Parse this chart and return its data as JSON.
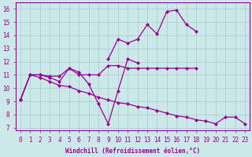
{
  "x": [
    0,
    1,
    2,
    3,
    4,
    5,
    6,
    7,
    8,
    9,
    10,
    11,
    12,
    13,
    14,
    15,
    16,
    17,
    18,
    19,
    20,
    21,
    22,
    23
  ],
  "line_high": [
    null,
    null,
    null,
    null,
    null,
    null,
    null,
    null,
    null,
    12.2,
    13.7,
    13.4,
    13.7,
    14.8,
    14.1,
    15.8,
    15.9,
    14.8,
    14.3,
    null,
    null,
    null,
    null,
    null
  ],
  "line_flat": [
    9.1,
    11.0,
    11.0,
    10.9,
    10.9,
    11.5,
    11.0,
    11.0,
    11.0,
    11.7,
    11.7,
    11.5,
    11.5,
    11.5,
    11.5,
    11.5,
    11.5,
    11.5,
    11.5,
    null,
    null,
    null,
    null,
    null
  ],
  "line_zigzag": [
    9.1,
    11.0,
    11.0,
    10.8,
    10.5,
    11.5,
    11.2,
    10.3,
    8.8,
    7.3,
    9.8,
    12.2,
    11.9,
    null,
    null,
    null,
    null,
    null,
    null,
    null,
    null,
    null,
    null,
    null
  ],
  "line_down": [
    9.1,
    11.0,
    10.8,
    10.5,
    10.2,
    10.1,
    9.8,
    9.6,
    9.3,
    9.1,
    8.9,
    8.8,
    8.6,
    8.5,
    8.3,
    8.1,
    7.9,
    7.8,
    7.6,
    7.5,
    7.3,
    7.8,
    7.8,
    7.3
  ],
  "color": "#990099",
  "bg_color": "#cce8e8",
  "grid_color": "#aacccc",
  "ylim_min": 6.8,
  "ylim_max": 16.5,
  "yticks": [
    7,
    8,
    9,
    10,
    11,
    12,
    13,
    14,
    15,
    16
  ],
  "xlabel": "Windchill (Refroidissement éolien,°C)"
}
